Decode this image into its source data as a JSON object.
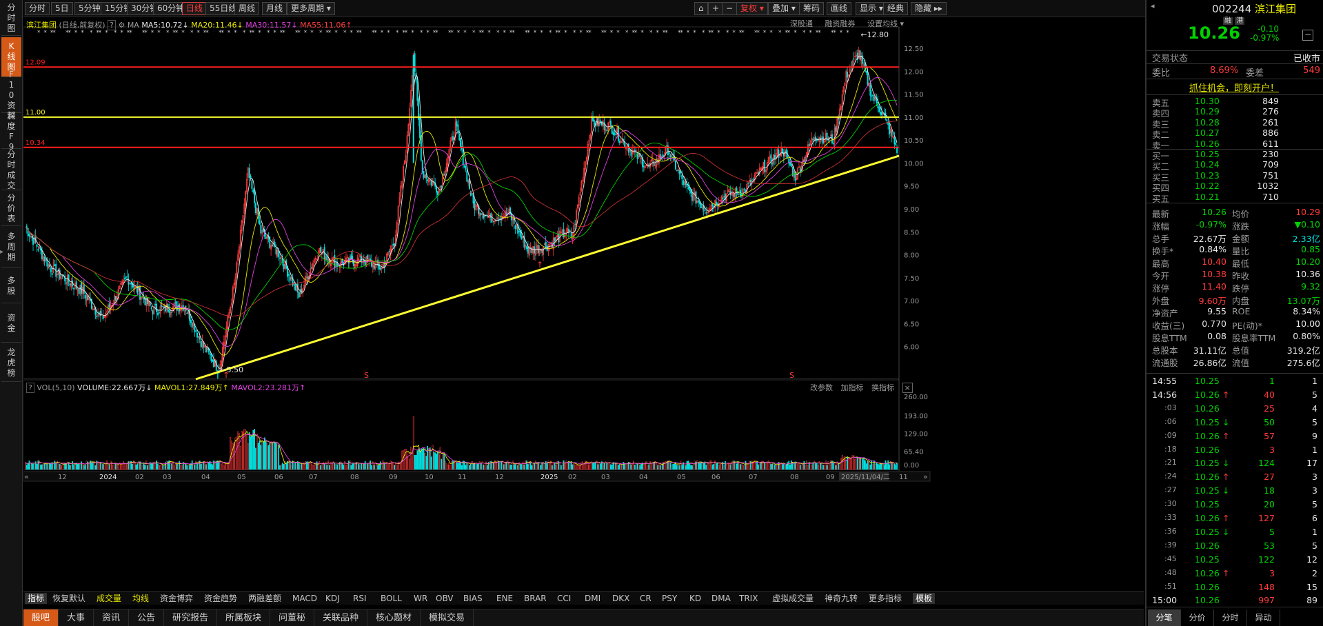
{
  "left_nav": [
    {
      "label": "分时图",
      "active": false
    },
    {
      "label": "K线图",
      "active": true
    },
    {
      "label": "F10资料",
      "active": false
    },
    {
      "label": "深度F9",
      "active": false
    },
    {
      "label": "分时成交",
      "active": false
    },
    {
      "label": "分价表",
      "active": false
    },
    {
      "label": "多周期",
      "active": false
    },
    {
      "label": "多股",
      "active": false
    },
    {
      "label": "资金",
      "active": false
    },
    {
      "label": "龙虎榜",
      "active": false
    }
  ],
  "toolbar": {
    "periods": [
      "分时",
      "5日",
      "5分钟",
      "15分钟",
      "30分钟",
      "60分钟",
      "日线",
      "55日线",
      "周线",
      "月线",
      "更多周期 ▾"
    ],
    "active_period": "日线",
    "right_buttons": [
      "复权 ▾",
      "叠加 ▾",
      "筹码",
      "画线",
      "显示 ▾",
      "经典",
      "隐藏 ▸▸"
    ],
    "icon_buttons": [
      "⌂",
      "+",
      "−"
    ]
  },
  "chart_header": {
    "name": "滨江集团",
    "mode": "(日线,前复权)",
    "help": "?",
    "ma_label": "MA",
    "ma5": "MA5:10.72",
    "ma20": "MA20:11.46",
    "ma30": "MA30:11.57",
    "ma55": "MA55:11.06",
    "links": [
      "深股通",
      "融资融券",
      "设置均线 ▾"
    ]
  },
  "price_levels": {
    "upper_red": "12.09",
    "yellow": "11.00",
    "lower_red": "10.34"
  },
  "annotations": {
    "high": "12.80",
    "low": "5.50"
  },
  "y_axis_ticks": [
    "12.50",
    "12.00",
    "11.50",
    "11.00",
    "10.50",
    "10.00",
    "9.50",
    "9.00",
    "8.50",
    "8.00",
    "7.50",
    "7.00",
    "6.50",
    "6.00"
  ],
  "vol_header": {
    "label": "VOL(5,10)",
    "volume": "VOLUME:22.667万",
    "mavol1": "MAVOL1:27.849万",
    "mavol2": "MAVOL2:23.281万",
    "links": [
      "改参数",
      "加指标",
      "换指标"
    ]
  },
  "vol_axis_ticks": [
    "260.00",
    "193.00",
    "129.00",
    "65.40",
    "0.00"
  ],
  "x_axis_labels": [
    "12",
    "2024",
    "02",
    "03",
    "04",
    "05",
    "06",
    "07",
    "08",
    "09",
    "10",
    "11",
    "12",
    "2025",
    "02",
    "03",
    "04",
    "05",
    "06",
    "07",
    "08",
    "09",
    "2025/11/04/二",
    "11"
  ],
  "indicator_tabs": [
    "指标",
    "恢复默认",
    "成交量",
    "均线",
    "资金博弈",
    "资金趋势",
    "两融差额",
    "MACD",
    "KDJ",
    "RSI",
    "BOLL",
    "WR",
    "OBV",
    "BIAS",
    "ENE",
    "BRAR",
    "CCI",
    "DMI",
    "DKX",
    "CR",
    "PSY",
    "KD",
    "DMA",
    "TRIX",
    "虚拟成交量",
    "神奇九转",
    "更多指标",
    "模板"
  ],
  "bottom_tabs": [
    "股吧",
    "大事",
    "资讯",
    "公告",
    "研究报告",
    "所属板块",
    "问董秘",
    "关联品种",
    "核心题材",
    "模拟交易"
  ],
  "quote": {
    "code": "002244",
    "name": "滨江集团",
    "tags": [
      "融",
      "港"
    ],
    "price": "10.26",
    "change": "-0.10",
    "change_pct": "-0.97%",
    "status_label": "交易状态",
    "status": "已收市",
    "wei_bi_label": "委比",
    "wei_bi": "8.69%",
    "wei_cha_label": "委差",
    "wei_cha": "549",
    "promo": "抓住机会，即刻开户！"
  },
  "order_book": {
    "asks": [
      {
        "label": "卖五",
        "price": "10.30",
        "vol": "849"
      },
      {
        "label": "卖四",
        "price": "10.29",
        "vol": "276"
      },
      {
        "label": "卖三",
        "price": "10.28",
        "vol": "261"
      },
      {
        "label": "卖二",
        "price": "10.27",
        "vol": "886"
      },
      {
        "label": "卖一",
        "price": "10.26",
        "vol": "611"
      }
    ],
    "bids": [
      {
        "label": "买一",
        "price": "10.25",
        "vol": "230"
      },
      {
        "label": "买二",
        "price": "10.24",
        "vol": "709"
      },
      {
        "label": "买三",
        "price": "10.23",
        "vol": "751"
      },
      {
        "label": "买四",
        "price": "10.22",
        "vol": "1032"
      },
      {
        "label": "买五",
        "price": "10.21",
        "vol": "710"
      }
    ]
  },
  "stats": [
    {
      "l1": "最新",
      "v1": "10.26",
      "c1": "g",
      "l2": "均价",
      "v2": "10.29",
      "c2": "r"
    },
    {
      "l1": "涨幅",
      "v1": "-0.97%",
      "c1": "g",
      "l2": "涨跌",
      "v2": "▼0.10",
      "c2": "g"
    },
    {
      "l1": "总手",
      "v1": "22.67万",
      "c1": "w",
      "l2": "金额",
      "v2": "2.33亿",
      "c2": "c"
    },
    {
      "l1": "换手*",
      "v1": "0.84%",
      "c1": "w",
      "l2": "量比",
      "v2": "0.85",
      "c2": "g"
    },
    {
      "l1": "最高",
      "v1": "10.40",
      "c1": "r",
      "l2": "最低",
      "v2": "10.20",
      "c2": "g"
    },
    {
      "l1": "今开",
      "v1": "10.38",
      "c1": "r",
      "l2": "昨收",
      "v2": "10.36",
      "c2": "w"
    },
    {
      "l1": "涨停",
      "v1": "11.40",
      "c1": "r",
      "l2": "跌停",
      "v2": "9.32",
      "c2": "g"
    },
    {
      "l1": "外盘",
      "v1": "9.60万",
      "c1": "r",
      "l2": "内盘",
      "v2": "13.07万",
      "c2": "g"
    },
    {
      "l1": "净资产",
      "v1": "9.55",
      "c1": "w",
      "l2": "ROE",
      "v2": "8.34%",
      "c2": "w"
    },
    {
      "l1": "收益(三)",
      "v1": "0.770",
      "c1": "w",
      "l2": "PE(动)*",
      "v2": "10.00",
      "c2": "w"
    },
    {
      "l1": "股息TTM",
      "v1": "0.08",
      "c1": "w",
      "l2": "股息率TTM",
      "v2": "0.80%",
      "c2": "w"
    },
    {
      "l1": "总股本",
      "v1": "31.11亿",
      "c1": "w",
      "l2": "总值",
      "v2": "319.2亿",
      "c2": "w"
    },
    {
      "l1": "流通股",
      "v1": "26.86亿",
      "c1": "w",
      "l2": "流值",
      "v2": "275.6亿",
      "c2": "w"
    }
  ],
  "ticks": [
    {
      "t": "14:55",
      "p": "10.25",
      "pc": "g",
      "a": "",
      "v": "1",
      "vc": "g",
      "n": "1"
    },
    {
      "t": "14:56",
      "p": "10.26",
      "pc": "g",
      "a": "↑",
      "v": "40",
      "vc": "r",
      "n": "5"
    },
    {
      "t": ":03",
      "p": "10.26",
      "pc": "g",
      "a": "",
      "v": "25",
      "vc": "r",
      "n": "4"
    },
    {
      "t": ":06",
      "p": "10.25",
      "pc": "g",
      "a": "↓",
      "v": "50",
      "vc": "g",
      "n": "5"
    },
    {
      "t": ":09",
      "p": "10.26",
      "pc": "g",
      "a": "↑",
      "v": "57",
      "vc": "r",
      "n": "9"
    },
    {
      "t": ":18",
      "p": "10.26",
      "pc": "g",
      "a": "",
      "v": "3",
      "vc": "r",
      "n": "1"
    },
    {
      "t": ":21",
      "p": "10.25",
      "pc": "g",
      "a": "↓",
      "v": "124",
      "vc": "g",
      "n": "17"
    },
    {
      "t": ":24",
      "p": "10.26",
      "pc": "g",
      "a": "↑",
      "v": "27",
      "vc": "r",
      "n": "3"
    },
    {
      "t": ":27",
      "p": "10.25",
      "pc": "g",
      "a": "↓",
      "v": "18",
      "vc": "g",
      "n": "3"
    },
    {
      "t": ":30",
      "p": "10.25",
      "pc": "g",
      "a": "",
      "v": "20",
      "vc": "g",
      "n": "5"
    },
    {
      "t": ":33",
      "p": "10.26",
      "pc": "g",
      "a": "↑",
      "v": "127",
      "vc": "r",
      "n": "6"
    },
    {
      "t": ":36",
      "p": "10.25",
      "pc": "g",
      "a": "↓",
      "v": "5",
      "vc": "g",
      "n": "1"
    },
    {
      "t": ":39",
      "p": "10.26",
      "pc": "g",
      "a": "",
      "v": "53",
      "vc": "g",
      "n": "5"
    },
    {
      "t": ":45",
      "p": "10.25",
      "pc": "g",
      "a": "",
      "v": "122",
      "vc": "g",
      "n": "12"
    },
    {
      "t": ":48",
      "p": "10.26",
      "pc": "g",
      "a": "↑",
      "v": "3",
      "vc": "r",
      "n": "2"
    },
    {
      "t": ":51",
      "p": "10.26",
      "pc": "g",
      "a": "",
      "v": "148",
      "vc": "r",
      "n": "15"
    },
    {
      "t": "15:00",
      "p": "10.26",
      "pc": "g",
      "a": "",
      "v": "997",
      "vc": "r",
      "n": "89"
    }
  ],
  "right_tabs": [
    "分笔",
    "分价",
    "分时",
    "异动"
  ],
  "colors": {
    "up": "#ff3b3b",
    "down": "#00e0e0",
    "ma5": "#e6e6e6",
    "ma20": "#e8e800",
    "ma30": "#e040e0",
    "ma55": "#00d200",
    "level_red": "#ff1e1e",
    "level_yellow": "#ffff30",
    "accent": "#d55a18"
  }
}
